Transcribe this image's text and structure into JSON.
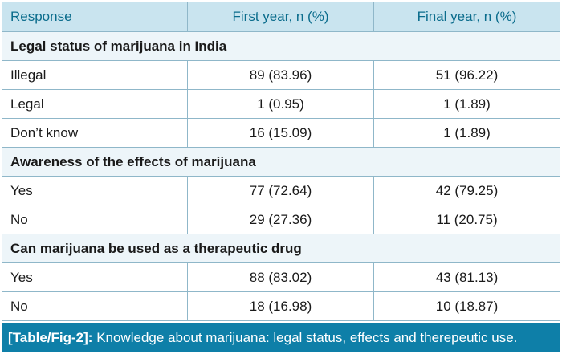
{
  "table": {
    "headers": {
      "response": "Response",
      "first_year": "First year, n (%)",
      "final_year": "Final year, n (%)"
    },
    "sections": [
      {
        "title": "Legal status of marijuana in India",
        "rows": [
          {
            "label": "Illegal",
            "first": "89 (83.96)",
            "final": "51 (96.22)"
          },
          {
            "label": "Legal",
            "first": "1 (0.95)",
            "final": "1 (1.89)"
          },
          {
            "label": "Don’t know",
            "first": "16 (15.09)",
            "final": "1 (1.89)"
          }
        ]
      },
      {
        "title": "Awareness of the effects of marijuana",
        "rows": [
          {
            "label": "Yes",
            "first": "77 (72.64)",
            "final": "42 (79.25)"
          },
          {
            "label": "No",
            "first": "29 (27.36)",
            "final": "11 (20.75)"
          }
        ]
      },
      {
        "title": "Can marijuana be used as a therapeutic drug",
        "rows": [
          {
            "label": "Yes",
            "first": "88 (83.02)",
            "final": "43 (81.13)"
          },
          {
            "label": "No",
            "first": "18 (16.98)",
            "final": "10 (18.87)"
          }
        ]
      }
    ]
  },
  "caption": {
    "ref": "[Table/Fig-2]:",
    "text": "Knowledge about marijuana: legal status, effects and therepeutic use."
  },
  "colors": {
    "header_bg": "#c9e4ef",
    "header_text": "#0a6c8c",
    "section_bg": "#edf5f9",
    "border": "#8fb7c9",
    "caption_bg": "#0e7fa8"
  }
}
